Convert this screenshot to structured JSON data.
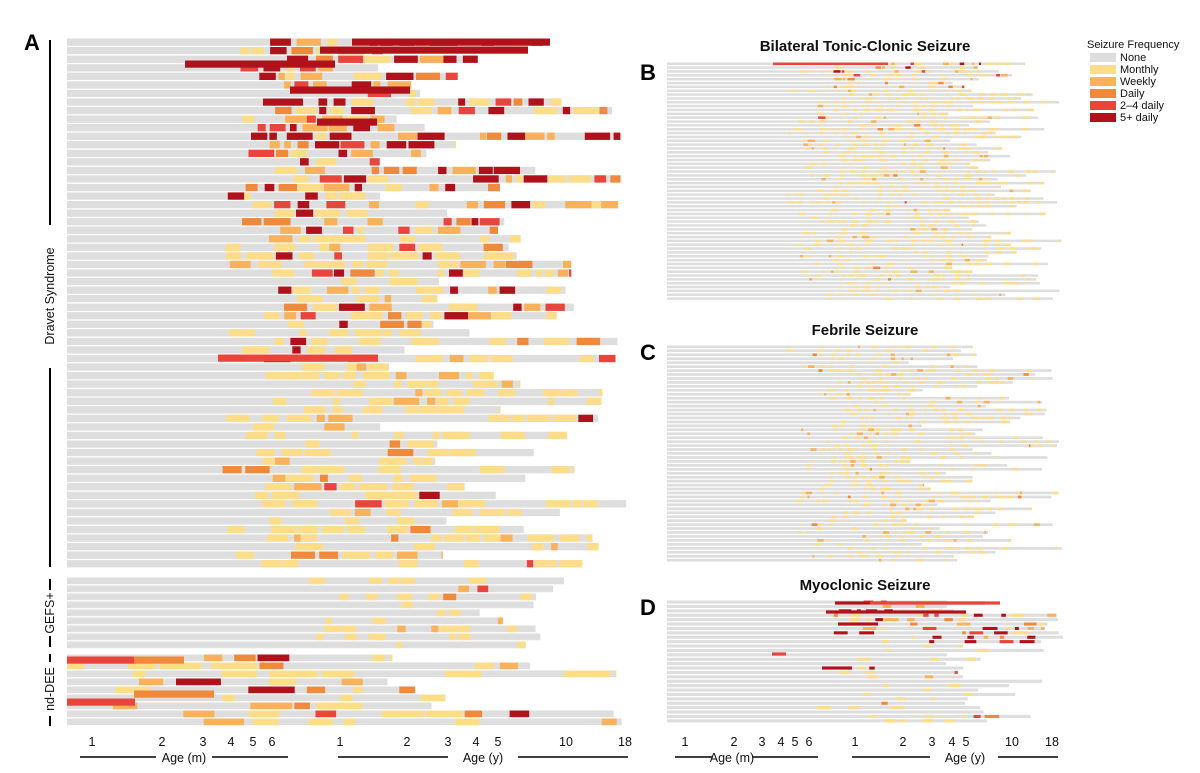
{
  "colors": {
    "None": "#dedede",
    "Monthly": "#fddc8a",
    "Weekly": "#f9b15b",
    "Daily": "#ef8a3c",
    "2-4 daily": "#e8453c",
    "5+ daily": "#b0121b",
    "text": "#111111",
    "grid": "#f2f2f2"
  },
  "legend": {
    "title": "Seizure Frequency",
    "items": [
      "None",
      "Monthly",
      "Weekly",
      "Daily",
      "2–4 daily",
      "5+ daily"
    ]
  },
  "chart_data": [
    {
      "panel": "A",
      "type": "heatmap",
      "title": "",
      "description_rows": "one row per patient, colored cells = seizure frequency over age",
      "groups": [
        {
          "name": "Dravet Syndrome",
          "rows": 62
        },
        {
          "name": "GEFS+",
          "rows": 9
        },
        {
          "name": "nd-DEE",
          "rows": 9
        }
      ],
      "x_axis_months": {
        "label": "Age (m)",
        "ticks": [
          "1",
          "2",
          "3",
          "4",
          "5",
          "6"
        ],
        "range": [
          0.7,
          7
        ]
      },
      "x_axis_years": {
        "label": "Age (y)",
        "ticks": [
          "1",
          "2",
          "3",
          "4",
          "5",
          "10",
          "18"
        ],
        "range": [
          1,
          18
        ]
      },
      "categories": [
        "None",
        "Monthly",
        "Weekly",
        "Daily",
        "2–4 daily",
        "5+ daily"
      ]
    },
    {
      "panel": "B",
      "type": "heatmap",
      "title": "Bilateral Tonic-Clonic Seizure",
      "rows": 62,
      "x_axis_months": {
        "label": "Age (m)",
        "ticks": [
          "1",
          "2",
          "3",
          "4",
          "5",
          "6"
        ]
      },
      "x_axis_years": {
        "label": "Age (y)",
        "ticks": [
          "1",
          "2",
          "3",
          "4",
          "5",
          "10",
          "18"
        ]
      }
    },
    {
      "panel": "C",
      "type": "heatmap",
      "title": "Febrile Seizure",
      "rows": 55
    },
    {
      "panel": "D",
      "type": "heatmap",
      "title": "Myoclonic Seizure",
      "rows": 28,
      "x_axis_months": {
        "label": "Age (m)",
        "ticks": [
          "1",
          "2",
          "3",
          "4",
          "5",
          "6"
        ]
      },
      "x_axis_years": {
        "label": "Age (y)",
        "ticks": [
          "1",
          "2",
          "3",
          "4",
          "5",
          "10",
          "18"
        ]
      }
    }
  ],
  "panel_labels": [
    "A",
    "B",
    "C",
    "D"
  ]
}
